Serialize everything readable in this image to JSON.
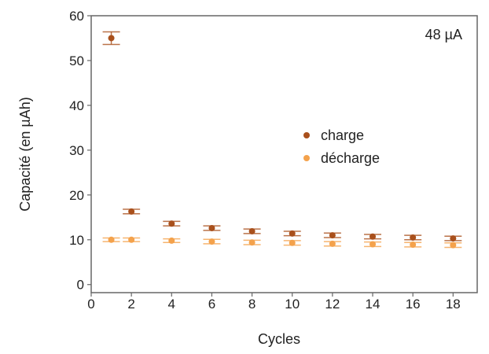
{
  "chart_data": {
    "type": "scatter",
    "title": "",
    "xlabel": "Cycles",
    "ylabel": "Capacité (en µAh)",
    "xlim": [
      0,
      19.2
    ],
    "ylim": [
      -1.8,
      60
    ],
    "xticks": [
      0,
      2,
      4,
      6,
      8,
      10,
      12,
      14,
      16,
      18
    ],
    "yticks": [
      0,
      10,
      20,
      30,
      40,
      50,
      60
    ],
    "annotation": "48 µA",
    "legend_position": "center-right",
    "grid": false,
    "series": [
      {
        "name": "charge",
        "color": "#a9501c",
        "x": [
          1,
          2,
          4,
          6,
          8,
          10,
          12,
          14,
          16,
          18
        ],
        "y": [
          55.0,
          16.3,
          13.6,
          12.6,
          11.9,
          11.4,
          11.0,
          10.7,
          10.5,
          10.3
        ],
        "err": [
          1.4,
          0.5,
          0.5,
          0.5,
          0.5,
          0.5,
          0.5,
          0.5,
          0.5,
          0.5
        ]
      },
      {
        "name": "décharge",
        "color": "#f4a24c",
        "x": [
          1,
          2,
          4,
          6,
          8,
          10,
          12,
          14,
          16,
          18
        ],
        "y": [
          10.0,
          10.0,
          9.8,
          9.6,
          9.4,
          9.3,
          9.1,
          9.0,
          8.9,
          8.8
        ],
        "err": [
          0.4,
          0.4,
          0.4,
          0.5,
          0.5,
          0.5,
          0.5,
          0.5,
          0.5,
          0.5
        ]
      }
    ]
  }
}
